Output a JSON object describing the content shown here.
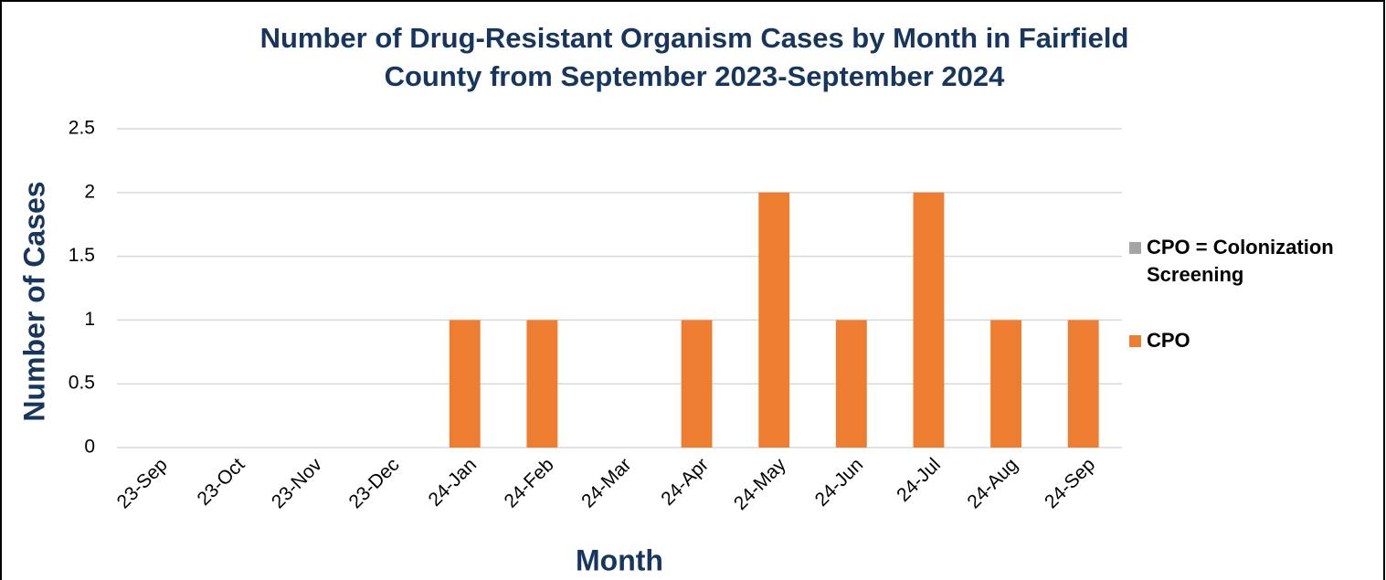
{
  "chart_data": {
    "type": "stacked_bar",
    "title": [
      "Number of Drug-Resistant Organism Cases by Month in Fairfield",
      "County from September 2023-September 2024"
    ],
    "x_label": "Month",
    "y_label": "Number of Cases",
    "categories": [
      "23-Sep",
      "23-Oct",
      "23-Nov",
      "23-Dec",
      "24-Jan",
      "24-Feb",
      "24-Mar",
      "24-Apr",
      "24-May",
      "24-Jun",
      "24-Jul",
      "24-Aug",
      "24-Sep"
    ],
    "series": [
      {
        "name": "CPO = Colonization Screening",
        "color": "#a5a5a5",
        "values": [
          0,
          0,
          0,
          0,
          0,
          0,
          0,
          0,
          0,
          0,
          0,
          0,
          0
        ]
      },
      {
        "name": "CPO",
        "color": "#ed7d31",
        "values": [
          0,
          0,
          0,
          0,
          1,
          1,
          0,
          1,
          2,
          1,
          2,
          1,
          1
        ]
      }
    ],
    "ylim": [
      0,
      2.5
    ],
    "yticks": [
      0,
      0.5,
      1,
      1.5,
      2,
      2.5
    ],
    "grid": true,
    "legend": "right"
  }
}
